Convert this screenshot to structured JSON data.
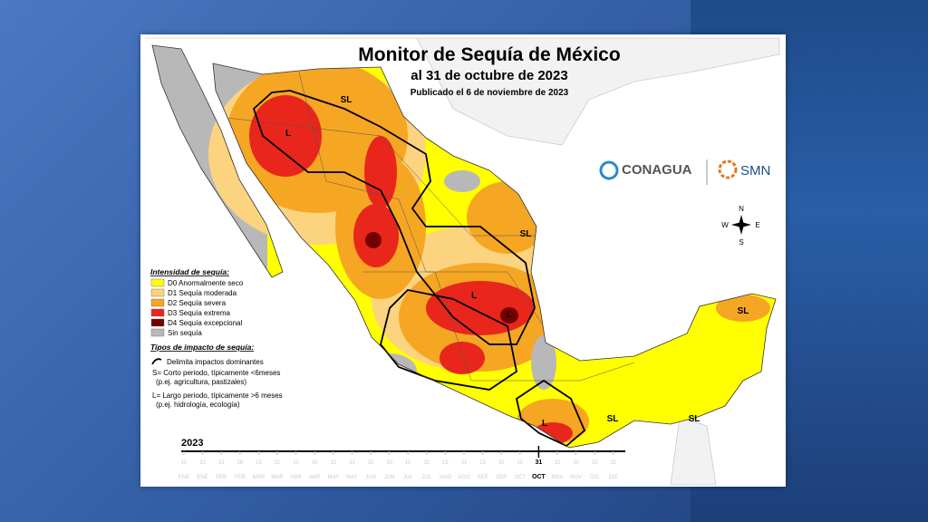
{
  "header": {
    "title": "Monitor de Sequía de México",
    "subtitle": "al 31 de octubre de 2023",
    "published": "Publicado el 6 de noviembre de 2023"
  },
  "legend": {
    "title": "Intensidad de sequía:",
    "items": [
      {
        "label": "D0 Anormalmente seco",
        "color": "#ffff00"
      },
      {
        "label": "D1 Sequía moderada",
        "color": "#fcd37f"
      },
      {
        "label": "D2 Sequía severa",
        "color": "#f5a623"
      },
      {
        "label": "D3 Sequía extrema",
        "color": "#e8261c"
      },
      {
        "label": "D4 Sequía excepcional",
        "color": "#730000"
      },
      {
        "label": "Sin sequía",
        "color": "#b8b8b8"
      }
    ]
  },
  "impact": {
    "title": "Tipos de impacto de sequía:",
    "items": [
      "Delimita impactos dominantes",
      "S= Corto periodo, típicamente <6meses",
      "(p.ej. agricultura, pastizales)",
      "L= Largo periodo, típicamente >6 meses",
      "(p.ej. hidrología, ecología)"
    ]
  },
  "logos": {
    "conagua": "CONAGUA",
    "smn": "SMN"
  },
  "compass": {
    "n": "N",
    "e": "E",
    "s": "S",
    "w": "W"
  },
  "map_labels": [
    "SL",
    "L",
    "SL",
    "L",
    "L",
    "SL",
    "SL",
    "SL",
    "L"
  ],
  "timeline": {
    "year": "2023",
    "days": [
      "15",
      "31",
      "15",
      "28",
      "15",
      "31",
      "15",
      "30",
      "15",
      "31",
      "15",
      "30",
      "15",
      "31",
      "15",
      "31",
      "15",
      "30",
      "15",
      "31",
      "15",
      "30",
      "15",
      "31"
    ],
    "months": [
      "ENE",
      "ENE",
      "FEB",
      "FEB",
      "MAR",
      "MAR",
      "ABR",
      "ABR",
      "MAY",
      "MAY",
      "JUN",
      "JUN",
      "JUL",
      "JUL",
      "AGO",
      "AGO",
      "SEP",
      "SEP",
      "OCT",
      "OCT",
      "NOV",
      "NOV",
      "DIC",
      "DIC"
    ],
    "current": {
      "day": "31",
      "month": "OCT"
    }
  }
}
